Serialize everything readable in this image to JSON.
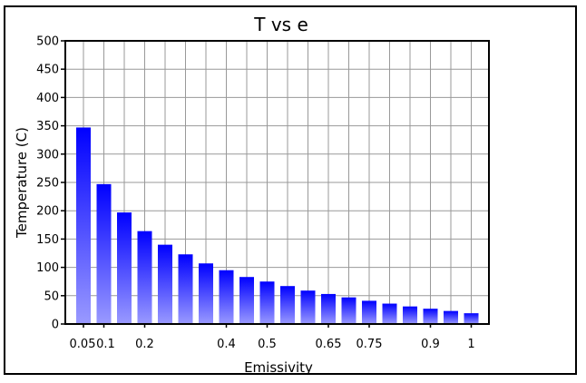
{
  "chart_data": {
    "type": "bar",
    "title": "T vs e",
    "xlabel": "Emissivity",
    "ylabel": "Temperature (C)",
    "ylim": [
      0,
      500
    ],
    "yticks": [
      0,
      50,
      100,
      150,
      200,
      250,
      300,
      350,
      400,
      450,
      500
    ],
    "grid": true,
    "legend": "none",
    "bar_gradient": {
      "top": "#0000ff",
      "bottom": "#9a9aff"
    },
    "x_tick_labels": [
      "0.05",
      "0.1",
      "0.2",
      "0.4",
      "0.5",
      "0.65",
      "0.75",
      "0.9",
      "1"
    ],
    "categories": [
      "0.05",
      "0.1",
      "0.15",
      "0.2",
      "0.25",
      "0.3",
      "0.35",
      "0.4",
      "0.45",
      "0.5",
      "0.55",
      "0.6",
      "0.65",
      "0.7",
      "0.75",
      "0.8",
      "0.85",
      "0.9",
      "0.95",
      "1"
    ],
    "values": [
      347,
      247,
      197,
      164,
      140,
      123,
      107,
      95,
      83,
      75,
      67,
      59,
      53,
      47,
      41,
      36,
      31,
      27,
      23,
      19
    ]
  }
}
